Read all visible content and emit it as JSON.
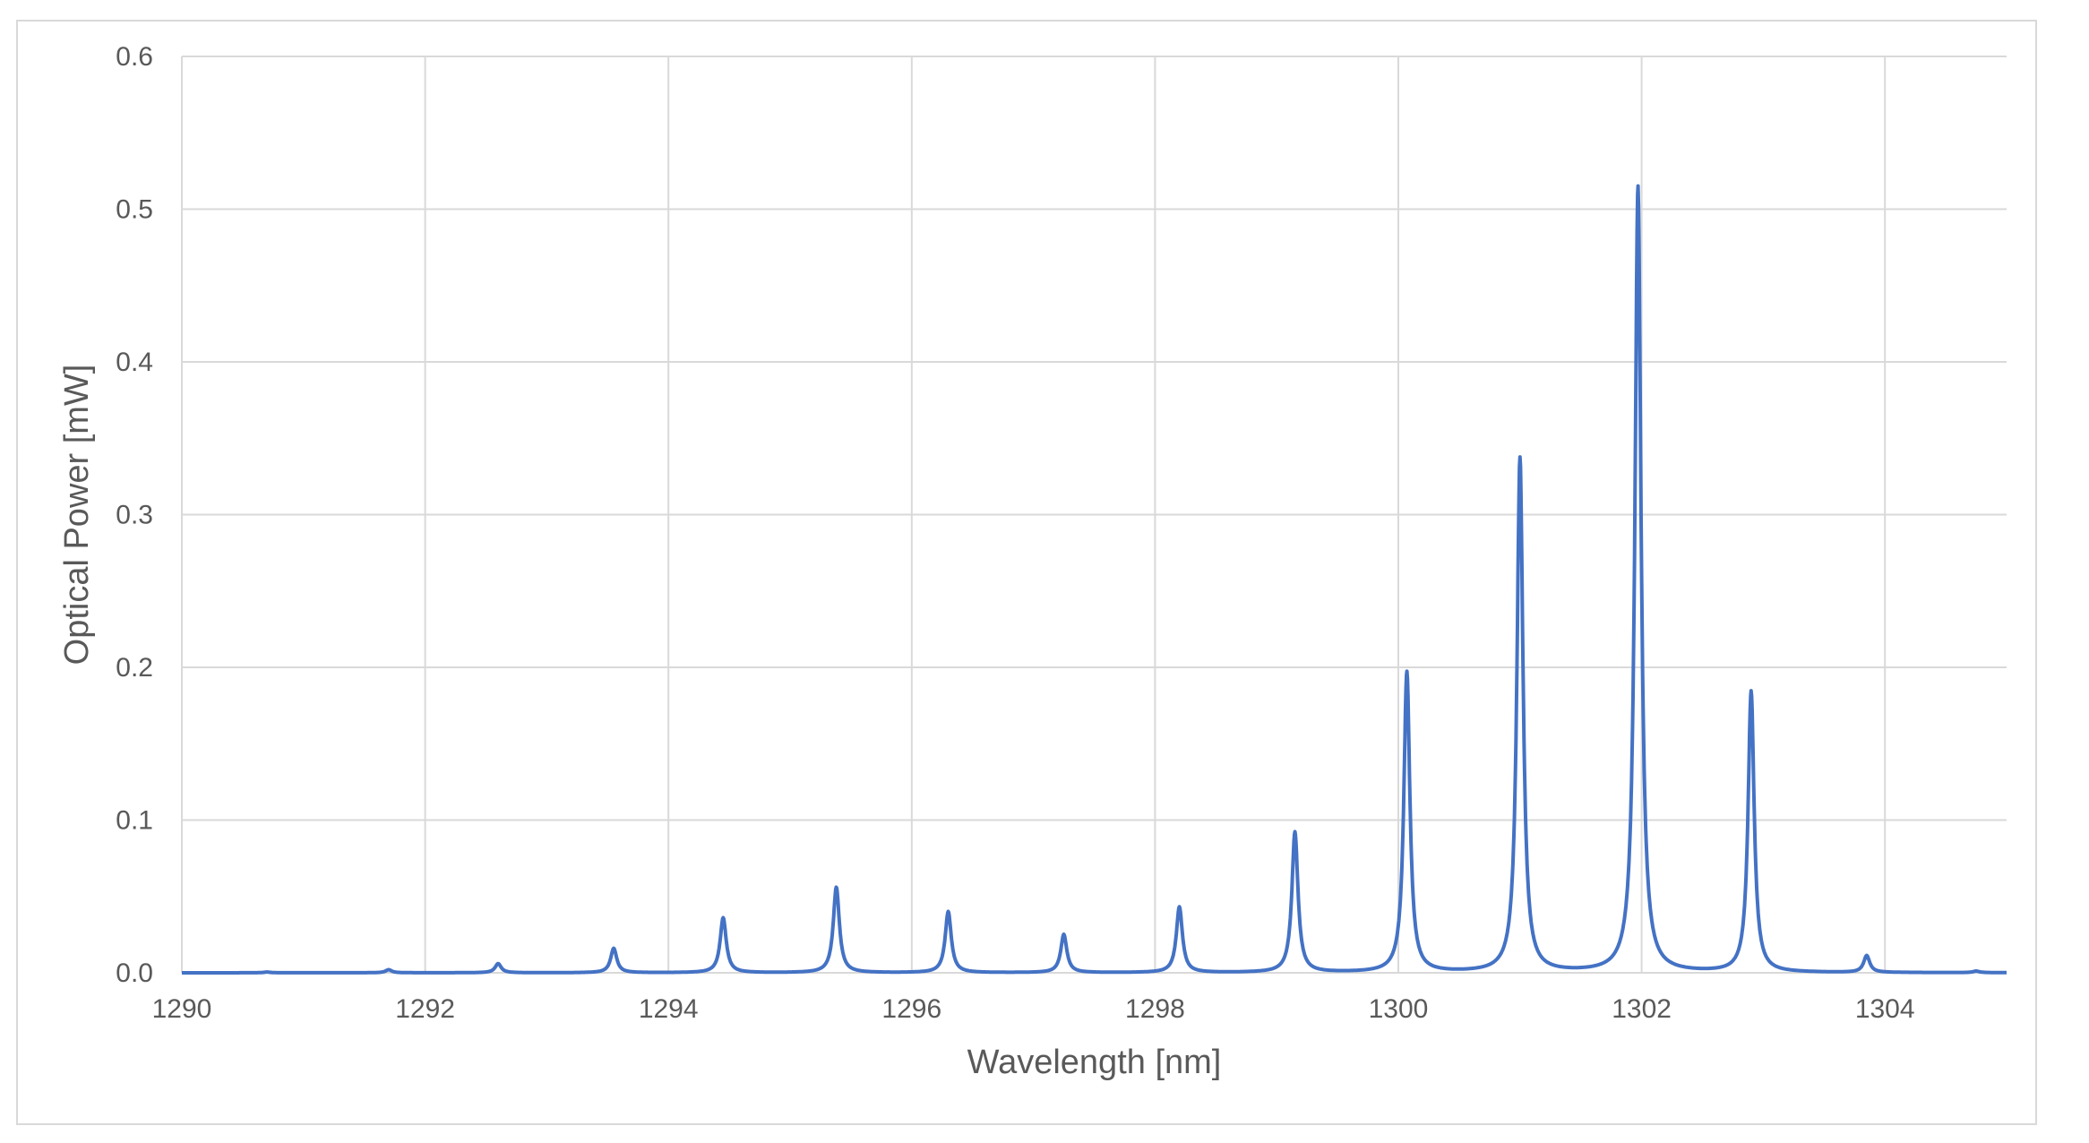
{
  "chart_data": {
    "type": "line",
    "title": "",
    "xlabel": "Wavelength [nm]",
    "ylabel": "Optical Power [mW]",
    "xlim": [
      1290,
      1305
    ],
    "ylim": [
      0,
      0.6
    ],
    "x_ticks": [
      "1290",
      "1292",
      "1294",
      "1296",
      "1298",
      "1300",
      "1302",
      "1304"
    ],
    "y_ticks": [
      "0.0",
      "0.1",
      "0.2",
      "0.3",
      "0.4",
      "0.5",
      "0.6"
    ],
    "grid": true,
    "legend": "none",
    "series_color": "#4472c4",
    "series": [
      {
        "peaks": [
          {
            "x": 1290.7,
            "y": 0.0005
          },
          {
            "x": 1291.7,
            "y": 0.002
          },
          {
            "x": 1292.6,
            "y": 0.006
          },
          {
            "x": 1293.55,
            "y": 0.016
          },
          {
            "x": 1294.45,
            "y": 0.036
          },
          {
            "x": 1295.38,
            "y": 0.056
          },
          {
            "x": 1296.3,
            "y": 0.04
          },
          {
            "x": 1297.25,
            "y": 0.025
          },
          {
            "x": 1298.2,
            "y": 0.043
          },
          {
            "x": 1299.15,
            "y": 0.092
          },
          {
            "x": 1300.07,
            "y": 0.197
          },
          {
            "x": 1301.0,
            "y": 0.337
          },
          {
            "x": 1301.97,
            "y": 0.515
          },
          {
            "x": 1302.9,
            "y": 0.184
          },
          {
            "x": 1303.85,
            "y": 0.011
          },
          {
            "x": 1304.75,
            "y": 0.001
          }
        ]
      }
    ]
  }
}
